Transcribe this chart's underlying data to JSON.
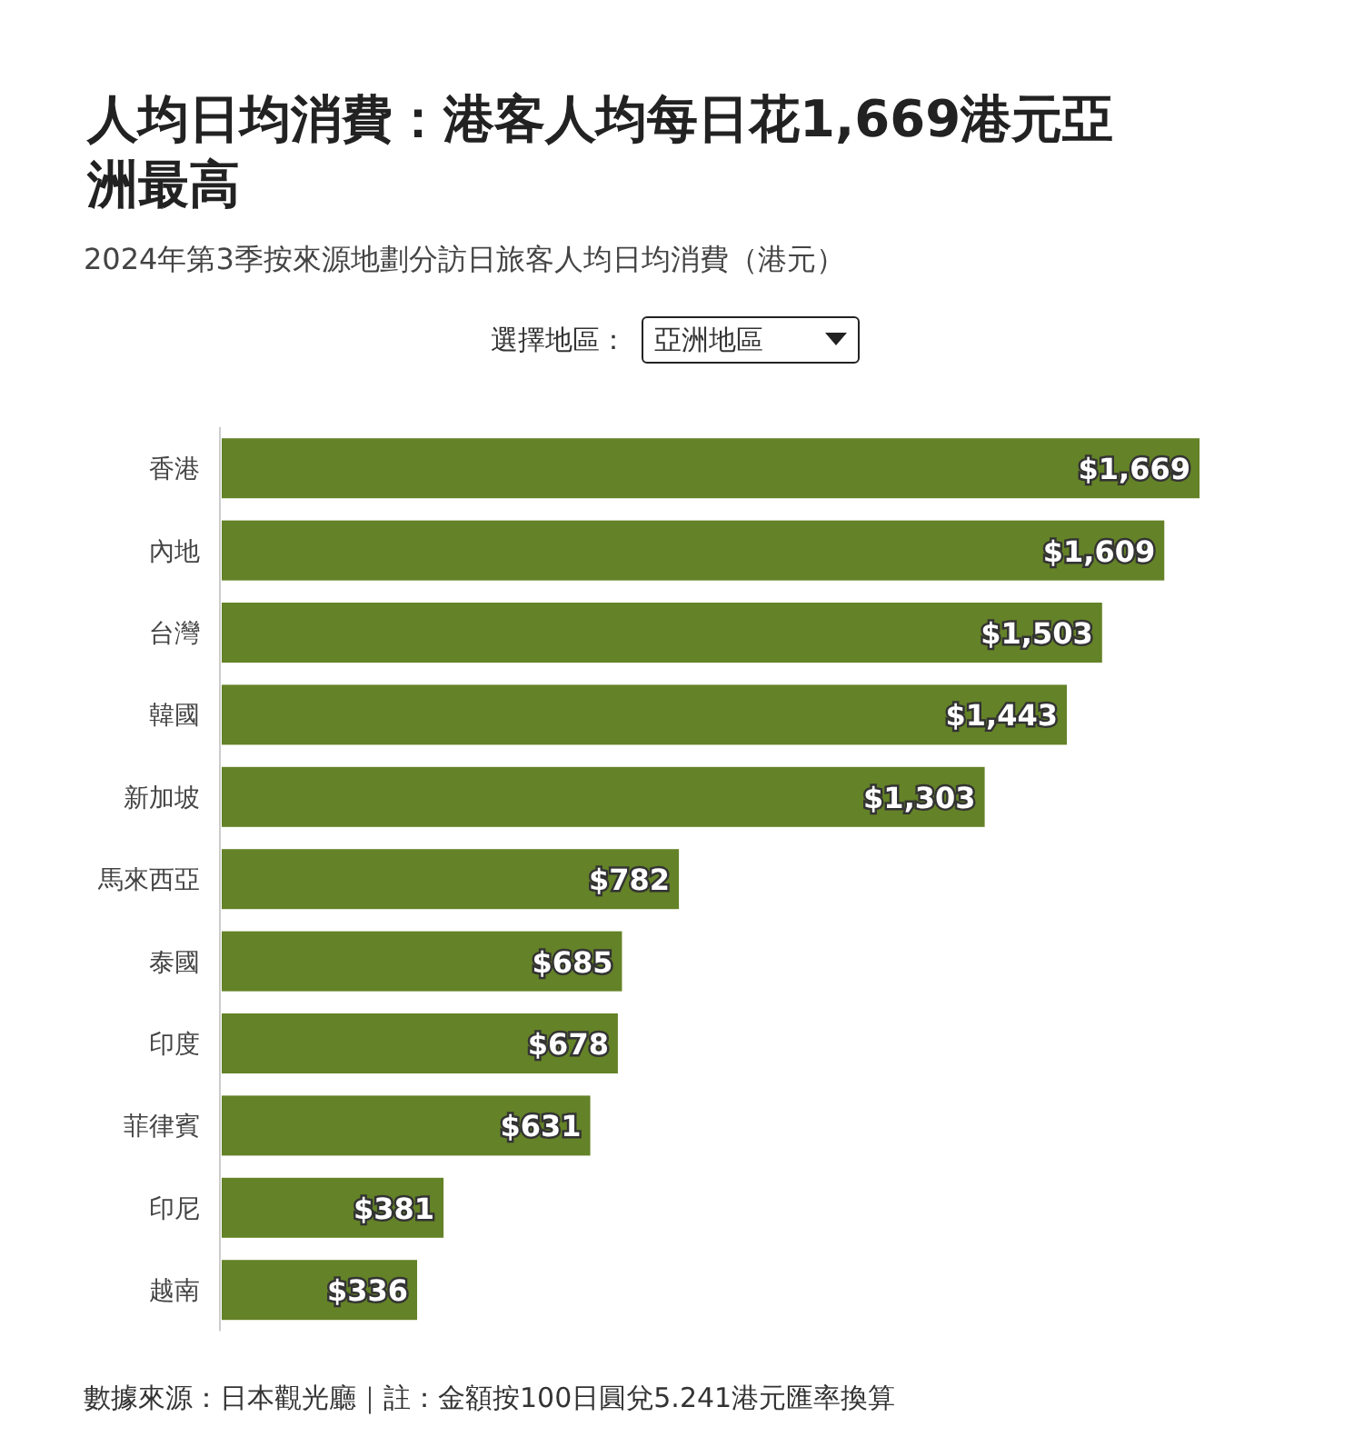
{
  "chart_data": {
    "type": "bar",
    "orientation": "horizontal",
    "title": "人均日均消費：港客人均每日花1,669港元亞洲最高",
    "subtitle": "2024年第3季按來源地劃分訪日旅客人均日均消費（港元）",
    "categories": [
      "香港",
      "內地",
      "台灣",
      "韓國",
      "新加坡",
      "馬來西亞",
      "泰國",
      "印度",
      "菲律賓",
      "印尼",
      "越南"
    ],
    "values": [
      1669,
      1609,
      1503,
      1443,
      1303,
      782,
      685,
      678,
      631,
      381,
      336
    ],
    "value_labels": [
      "$1,669",
      "$1,609",
      "$1,503",
      "$1,443",
      "$1,303",
      "$782",
      "$685",
      "$678",
      "$631",
      "$381",
      "$336"
    ],
    "color": "#648227",
    "annotations": [
      "選擇地區：",
      "亞洲地區",
      "數據來源：日本觀光廳｜註：金額按100日圓兌5.241港元匯率換算"
    ]
  }
}
